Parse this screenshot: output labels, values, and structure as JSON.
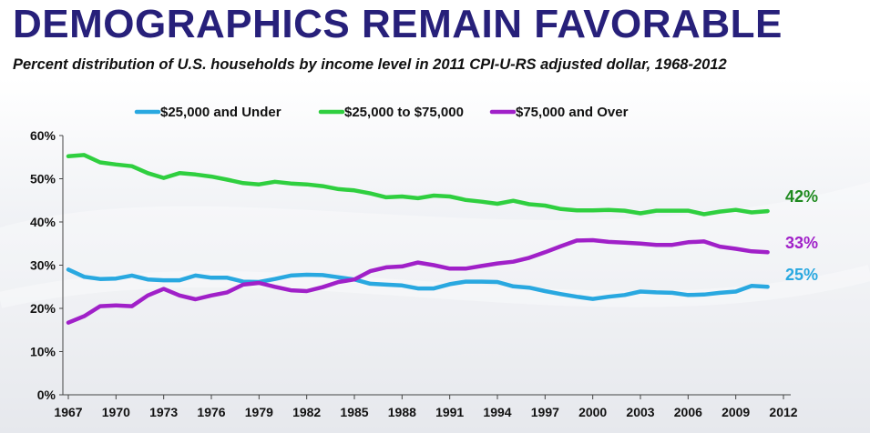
{
  "title": "DEMOGRAPHICS REMAIN FAVORABLE",
  "subtitle": "Percent distribution of U.S. households by income level in 2011 CPI-U-RS adjusted dollar, 1968-2012",
  "colors": {
    "title": "#27207a",
    "under25": "#29a8e0",
    "mid": "#2fcf3f",
    "over75": "#a020c8",
    "mid_label": "#1f8a1f"
  },
  "chart_data": {
    "type": "line",
    "x": [
      1967,
      1968,
      1969,
      1970,
      1971,
      1972,
      1973,
      1974,
      1975,
      1976,
      1977,
      1978,
      1979,
      1980,
      1981,
      1982,
      1983,
      1984,
      1985,
      1986,
      1987,
      1988,
      1989,
      1990,
      1991,
      1992,
      1993,
      1994,
      1995,
      1996,
      1997,
      1998,
      1999,
      2000,
      2001,
      2002,
      2003,
      2004,
      2005,
      2006,
      2007,
      2008,
      2009,
      2010,
      2011,
      2012
    ],
    "xticks": [
      "1967",
      "1970",
      "1973",
      "1976",
      "1979",
      "1982",
      "1985",
      "1988",
      "1991",
      "1994",
      "1997",
      "2000",
      "2003",
      "2006",
      "2009",
      "2012"
    ],
    "yticks": [
      "0%",
      "10%",
      "20%",
      "30%",
      "40%",
      "50%",
      "60%"
    ],
    "ylim": [
      0,
      60
    ],
    "legend_position": "top",
    "series": [
      {
        "name": "$25,000 and Under",
        "color": "#29a8e0",
        "end_label": "25%",
        "values": [
          29,
          27.3,
          26.8,
          26.9,
          27.6,
          26.7,
          26.5,
          26.5,
          27.6,
          27.1,
          27.1,
          26.2,
          26.1,
          26.8,
          27.6,
          27.8,
          27.7,
          27.2,
          26.7,
          25.7,
          25.5,
          25.3,
          24.6,
          24.6,
          25.6,
          26.2,
          26.2,
          26.1,
          25.1,
          24.8,
          24,
          23.3,
          22.7,
          22.2,
          22.7,
          23.1,
          23.9,
          23.7,
          23.6,
          23.1,
          23.2,
          23.6,
          23.9,
          25.2,
          25,
          null
        ]
      },
      {
        "name": "$25,000 to $75,000",
        "color": "#2fcf3f",
        "end_label": "42%",
        "values": [
          55.2,
          55.5,
          53.8,
          53.3,
          52.9,
          51.3,
          50.2,
          51.3,
          51,
          50.5,
          49.8,
          49,
          48.7,
          49.3,
          48.9,
          48.7,
          48.3,
          47.6,
          47.3,
          46.6,
          45.7,
          45.9,
          45.5,
          46.1,
          45.9,
          45.1,
          44.7,
          44.2,
          44.9,
          44.1,
          43.8,
          43,
          42.7,
          42.7,
          42.8,
          42.6,
          42,
          42.6,
          42.6,
          42.6,
          41.8,
          42.4,
          42.8,
          42.2,
          42.5,
          null
        ]
      },
      {
        "name": "$75,000 and Over",
        "color": "#a020c8",
        "end_label": "33%",
        "values": [
          16.7,
          18.2,
          20.5,
          20.7,
          20.5,
          23,
          24.5,
          23,
          22.1,
          23,
          23.7,
          25.5,
          25.9,
          25,
          24.2,
          24,
          24.9,
          26.1,
          26.7,
          28.6,
          29.5,
          29.7,
          30.6,
          30,
          29.2,
          29.2,
          29.8,
          30.4,
          30.8,
          31.7,
          33,
          34.4,
          35.7,
          35.8,
          35.4,
          35.2,
          35,
          34.7,
          34.7,
          35.3,
          35.5,
          34.3,
          33.8,
          33.2,
          33,
          null
        ]
      }
    ]
  }
}
